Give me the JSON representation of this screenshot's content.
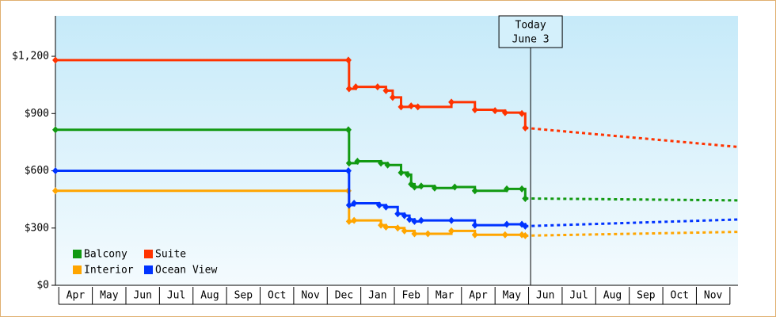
{
  "chart_data": {
    "type": "step-line",
    "categories": [
      "Apr",
      "May",
      "Jun",
      "Jul",
      "Aug",
      "Sep",
      "Oct",
      "Nov",
      "Dec",
      "Jan",
      "Feb",
      "Mar",
      "Apr",
      "May",
      "Jun",
      "Jul",
      "Aug",
      "Sep",
      "Oct",
      "Nov"
    ],
    "xlim": [
      -0.1,
      20.24
    ],
    "ylim": [
      0,
      1412
    ],
    "yticks": [
      {
        "value": 0,
        "label": "$0"
      },
      {
        "value": 300,
        "label": "$300"
      },
      {
        "value": 600,
        "label": "$600"
      },
      {
        "value": 900,
        "label": "$900"
      },
      {
        "value": 1200,
        "label": "$1,200"
      }
    ],
    "legend": "lower left",
    "annotation": {
      "x": 14.06,
      "lines": [
        "Today",
        "June 3"
      ]
    },
    "series": [
      {
        "name": "Balcony",
        "color": "#119911",
        "x": [
          -0.1,
          8.63,
          8.65,
          8.9,
          9.6,
          9.8,
          10.2,
          10.4,
          10.5,
          10.6,
          10.8,
          11.2,
          11.8,
          12.4,
          13.35,
          13.8,
          13.9
        ],
        "values": [
          815,
          815,
          640,
          650,
          640,
          630,
          590,
          580,
          530,
          515,
          520,
          510,
          515,
          495,
          505,
          505,
          455
        ],
        "projection": {
          "x": [
            13.9,
            20.24
          ],
          "values": [
            455,
            445
          ]
        }
      },
      {
        "name": "Suite",
        "color": "#ff3300",
        "x": [
          -0.1,
          8.63,
          8.65,
          8.85,
          9.5,
          9.75,
          9.95,
          10.2,
          10.5,
          10.7,
          11.7,
          12.4,
          13.0,
          13.3,
          13.8,
          13.9
        ],
        "values": [
          1180,
          1180,
          1030,
          1040,
          1040,
          1020,
          985,
          935,
          940,
          935,
          960,
          920,
          915,
          905,
          900,
          825
        ],
        "projection": {
          "x": [
            13.9,
            20.24
          ],
          "values": [
            825,
            725
          ]
        }
      },
      {
        "name": "Interior",
        "color": "#ffa500",
        "x": [
          -0.1,
          8.63,
          8.65,
          8.8,
          9.6,
          9.75,
          10.1,
          10.3,
          10.6,
          11.0,
          11.7,
          12.4,
          13.3,
          13.8,
          13.9
        ],
        "values": [
          495,
          495,
          335,
          340,
          315,
          305,
          300,
          285,
          270,
          270,
          285,
          265,
          265,
          265,
          260
        ],
        "projection": {
          "x": [
            13.9,
            20.24
          ],
          "values": [
            260,
            280
          ]
        }
      },
      {
        "name": "Ocean View",
        "color": "#0033ff",
        "x": [
          -0.1,
          8.63,
          8.65,
          8.8,
          9.55,
          9.75,
          10.1,
          10.3,
          10.45,
          10.6,
          10.8,
          11.7,
          12.4,
          13.35,
          13.8,
          13.9
        ],
        "values": [
          600,
          600,
          420,
          430,
          420,
          410,
          375,
          365,
          345,
          335,
          340,
          340,
          315,
          320,
          320,
          310
        ],
        "projection": {
          "x": [
            13.9,
            20.24
          ],
          "values": [
            310,
            345
          ]
        }
      }
    ]
  }
}
